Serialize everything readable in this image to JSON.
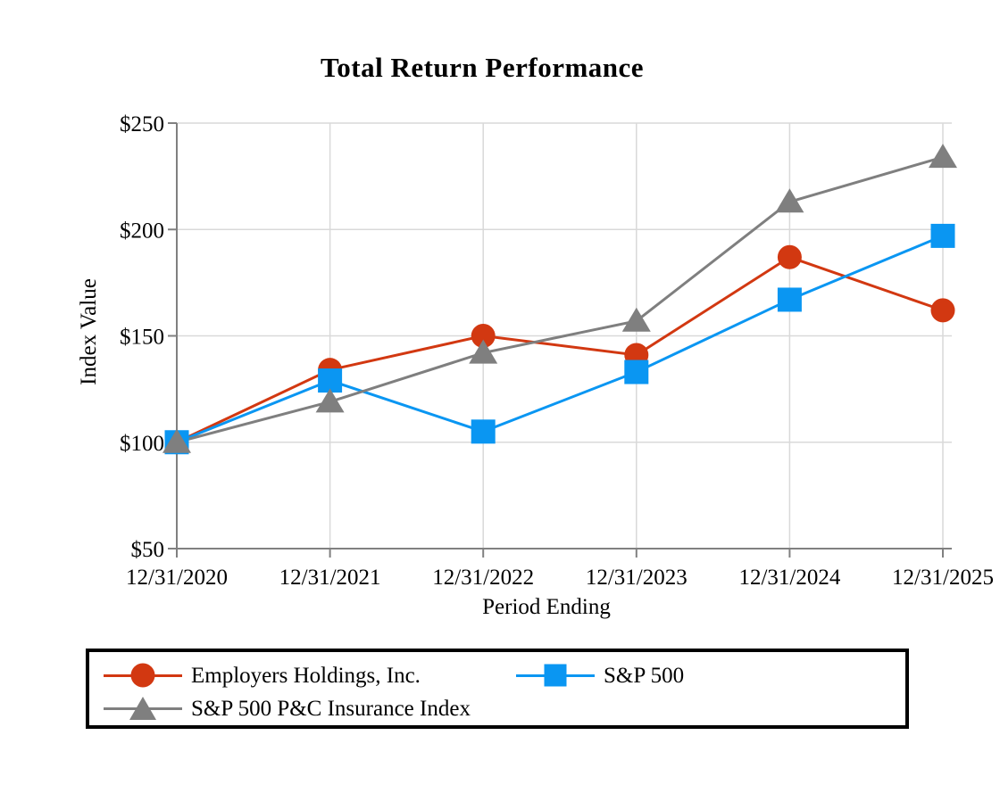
{
  "title": "Total Return Performance",
  "chart_data": {
    "type": "line",
    "title": "Total Return Performance",
    "xlabel": "Period Ending",
    "ylabel": "Index Value",
    "categories": [
      "12/31/2020",
      "12/31/2021",
      "12/31/2022",
      "12/31/2023",
      "12/31/2024",
      "12/31/2025"
    ],
    "series": [
      {
        "name": "Employers Holdings, Inc.",
        "marker": "circle",
        "color": "#D23811",
        "values": [
          100,
          134,
          150,
          141,
          187,
          162
        ]
      },
      {
        "name": "S&P 500",
        "marker": "square",
        "color": "#0A96F2",
        "values": [
          100,
          129,
          105,
          133,
          167,
          197
        ]
      },
      {
        "name": "S&P 500 P&C Insurance Index",
        "marker": "triangle",
        "color": "#7F7F7F",
        "values": [
          100,
          119,
          142,
          157,
          213,
          234
        ]
      }
    ],
    "ylim": [
      50,
      250
    ],
    "ytick_step": 50,
    "ytick_labels": [
      "$50",
      "$100",
      "$150",
      "$200",
      "$250"
    ],
    "grid": true,
    "legend_position": "bottom"
  },
  "colors": {
    "axis": "#808080",
    "gridline": "#D9D9D9",
    "legend_border": "#000000",
    "background": "#FFFFFF"
  }
}
